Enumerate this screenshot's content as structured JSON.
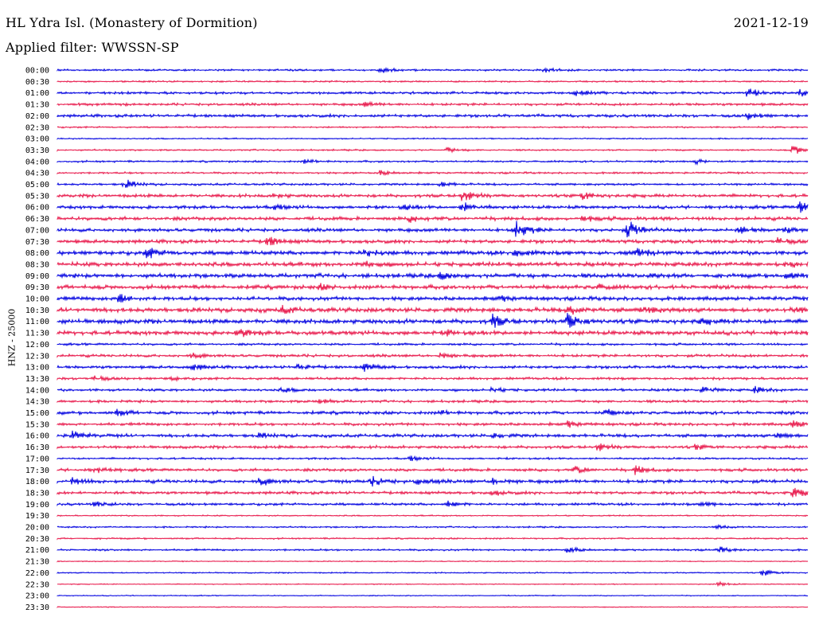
{
  "header": {
    "station": "HL Ydra Isl. (Monastery of Dormition)",
    "date": "2021-12-19",
    "filter": "Applied filter: WWSSN-SP"
  },
  "colors": {
    "trace_a": "#0000e0",
    "trace_b": "#e8174a",
    "text": "#000000"
  },
  "chart_data": {
    "type": "line",
    "title": "HL Ydra Isl. (Monastery of Dormition)",
    "ylabel": "HNZ - 25000",
    "xlabel": "",
    "grid": false,
    "legend": "none",
    "rows": [
      {
        "label": "00:00",
        "amp": 1.2,
        "events": [
          [
            0.43,
            4
          ],
          [
            0.65,
            3
          ]
        ]
      },
      {
        "label": "00:30",
        "amp": 1.0,
        "events": []
      },
      {
        "label": "01:00",
        "amp": 1.6,
        "events": [
          [
            0.69,
            5
          ],
          [
            0.92,
            6
          ],
          [
            0.99,
            4
          ]
        ]
      },
      {
        "label": "01:30",
        "amp": 1.6,
        "events": [
          [
            0.41,
            3
          ]
        ]
      },
      {
        "label": "02:00",
        "amp": 1.8,
        "events": [
          [
            0.92,
            4
          ]
        ]
      },
      {
        "label": "02:30",
        "amp": 1.0,
        "events": []
      },
      {
        "label": "03:00",
        "amp": 0.8,
        "events": []
      },
      {
        "label": "03:30",
        "amp": 1.0,
        "events": [
          [
            0.52,
            3
          ],
          [
            0.98,
            6
          ]
        ]
      },
      {
        "label": "04:00",
        "amp": 1.2,
        "events": [
          [
            0.33,
            3
          ],
          [
            0.85,
            3
          ]
        ]
      },
      {
        "label": "04:30",
        "amp": 1.2,
        "events": [
          [
            0.43,
            3
          ]
        ]
      },
      {
        "label": "05:00",
        "amp": 1.4,
        "events": [
          [
            0.09,
            6
          ],
          [
            0.51,
            3
          ]
        ]
      },
      {
        "label": "05:30",
        "amp": 2.0,
        "events": [
          [
            0.54,
            8
          ],
          [
            0.7,
            5
          ],
          [
            0.29,
            2
          ]
        ]
      },
      {
        "label": "06:00",
        "amp": 2.0,
        "events": [
          [
            0.54,
            7
          ],
          [
            0.99,
            12
          ],
          [
            0.29,
            3
          ],
          [
            0.46,
            3
          ]
        ]
      },
      {
        "label": "06:30",
        "amp": 2.2,
        "events": [
          [
            0.47,
            4
          ],
          [
            0.7,
            3
          ]
        ]
      },
      {
        "label": "07:00",
        "amp": 2.2,
        "events": [
          [
            0.61,
            14
          ],
          [
            0.76,
            12
          ],
          [
            0.91,
            4
          ],
          [
            0.97,
            3
          ]
        ]
      },
      {
        "label": "07:30",
        "amp": 2.2,
        "events": [
          [
            0.28,
            6
          ],
          [
            0.96,
            4
          ]
        ]
      },
      {
        "label": "08:00",
        "amp": 2.6,
        "events": [
          [
            0.12,
            7
          ],
          [
            0.41,
            6
          ],
          [
            0.61,
            5
          ],
          [
            0.77,
            6
          ]
        ]
      },
      {
        "label": "08:30",
        "amp": 2.6,
        "events": [
          [
            0.41,
            4
          ],
          [
            0.98,
            3
          ]
        ]
      },
      {
        "label": "09:00",
        "amp": 2.6,
        "events": [
          [
            0.51,
            4
          ],
          [
            0.79,
            3
          ],
          [
            0.97,
            4
          ]
        ]
      },
      {
        "label": "09:30",
        "amp": 2.6,
        "events": [
          [
            0.35,
            3
          ],
          [
            0.72,
            3
          ]
        ]
      },
      {
        "label": "10:00",
        "amp": 2.4,
        "events": [
          [
            0.08,
            7
          ],
          [
            0.59,
            3
          ]
        ]
      },
      {
        "label": "10:30",
        "amp": 2.8,
        "events": [
          [
            0.3,
            4
          ],
          [
            0.68,
            6
          ],
          [
            0.78,
            5
          ],
          [
            0.98,
            3
          ]
        ]
      },
      {
        "label": "11:00",
        "amp": 2.8,
        "events": [
          [
            0.58,
            8
          ],
          [
            0.68,
            10
          ],
          [
            0.86,
            3
          ]
        ]
      },
      {
        "label": "11:30",
        "amp": 2.6,
        "events": [
          [
            0.24,
            5
          ],
          [
            0.52,
            3
          ]
        ]
      },
      {
        "label": "12:00",
        "amp": 1.4,
        "events": []
      },
      {
        "label": "12:30",
        "amp": 1.8,
        "events": [
          [
            0.18,
            3
          ],
          [
            0.51,
            3
          ]
        ]
      },
      {
        "label": "13:00",
        "amp": 1.8,
        "events": [
          [
            0.18,
            4
          ],
          [
            0.32,
            4
          ],
          [
            0.41,
            5
          ]
        ]
      },
      {
        "label": "13:30",
        "amp": 1.6,
        "events": [
          [
            0.05,
            3
          ],
          [
            0.15,
            2
          ]
        ]
      },
      {
        "label": "14:00",
        "amp": 1.6,
        "events": [
          [
            0.3,
            3
          ],
          [
            0.58,
            3
          ],
          [
            0.86,
            4
          ],
          [
            0.93,
            4
          ]
        ]
      },
      {
        "label": "14:30",
        "amp": 1.6,
        "events": [
          [
            0.35,
            3
          ]
        ]
      },
      {
        "label": "15:00",
        "amp": 2.0,
        "events": [
          [
            0.08,
            4
          ],
          [
            0.51,
            3
          ],
          [
            0.73,
            4
          ]
        ]
      },
      {
        "label": "15:30",
        "amp": 1.8,
        "events": [
          [
            0.68,
            4
          ],
          [
            0.98,
            4
          ]
        ]
      },
      {
        "label": "16:00",
        "amp": 2.0,
        "events": [
          [
            0.02,
            5
          ],
          [
            0.27,
            3
          ],
          [
            0.58,
            3
          ],
          [
            0.96,
            4
          ]
        ]
      },
      {
        "label": "16:30",
        "amp": 1.8,
        "events": [
          [
            0.72,
            5
          ],
          [
            0.85,
            3
          ]
        ]
      },
      {
        "label": "17:00",
        "amp": 1.2,
        "events": [
          [
            0.47,
            3
          ]
        ]
      },
      {
        "label": "17:30",
        "amp": 1.8,
        "events": [
          [
            0.05,
            3
          ],
          [
            0.69,
            4
          ],
          [
            0.77,
            6
          ]
        ]
      },
      {
        "label": "18:00",
        "amp": 2.2,
        "events": [
          [
            0.02,
            4
          ],
          [
            0.27,
            5
          ],
          [
            0.42,
            5
          ],
          [
            0.48,
            4
          ],
          [
            0.58,
            4
          ]
        ]
      },
      {
        "label": "18:30",
        "amp": 1.8,
        "events": [
          [
            0.58,
            3
          ],
          [
            0.98,
            7
          ]
        ]
      },
      {
        "label": "19:00",
        "amp": 1.6,
        "events": [
          [
            0.05,
            3
          ],
          [
            0.52,
            4
          ],
          [
            0.86,
            3
          ]
        ]
      },
      {
        "label": "19:30",
        "amp": 0.8,
        "events": []
      },
      {
        "label": "20:00",
        "amp": 1.0,
        "events": [
          [
            0.88,
            2
          ]
        ]
      },
      {
        "label": "20:30",
        "amp": 1.0,
        "events": []
      },
      {
        "label": "21:00",
        "amp": 1.2,
        "events": [
          [
            0.68,
            4
          ],
          [
            0.88,
            4
          ]
        ]
      },
      {
        "label": "21:30",
        "amp": 0.6,
        "events": []
      },
      {
        "label": "22:00",
        "amp": 0.8,
        "events": [
          [
            0.94,
            4
          ]
        ]
      },
      {
        "label": "22:30",
        "amp": 0.6,
        "events": [
          [
            0.88,
            3
          ]
        ]
      },
      {
        "label": "23:00",
        "amp": 0.6,
        "events": []
      },
      {
        "label": "23:30",
        "amp": 0.6,
        "events": []
      }
    ]
  }
}
